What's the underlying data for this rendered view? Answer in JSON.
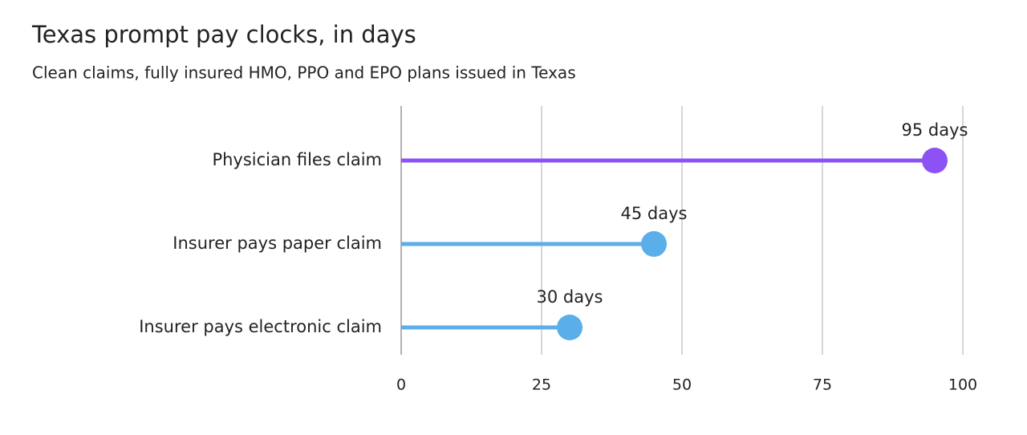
{
  "chart_data": {
    "type": "lollipop",
    "title": "Texas prompt pay clocks, in days",
    "subtitle": "Clean claims, fully insured HMO, PPO and EPO plans issued in Texas",
    "categories": [
      "Physician files claim",
      "Insurer pays paper claim",
      "Insurer pays electronic claim"
    ],
    "values": [
      95,
      45,
      30
    ],
    "value_labels": [
      "95 days",
      "45 days",
      "30 days"
    ],
    "colors": [
      "#8c52f5",
      "#5aaee9",
      "#5aaee9"
    ],
    "xlim": [
      0,
      100
    ],
    "xticks": [
      0,
      25,
      50,
      75,
      100
    ],
    "grid": true
  }
}
